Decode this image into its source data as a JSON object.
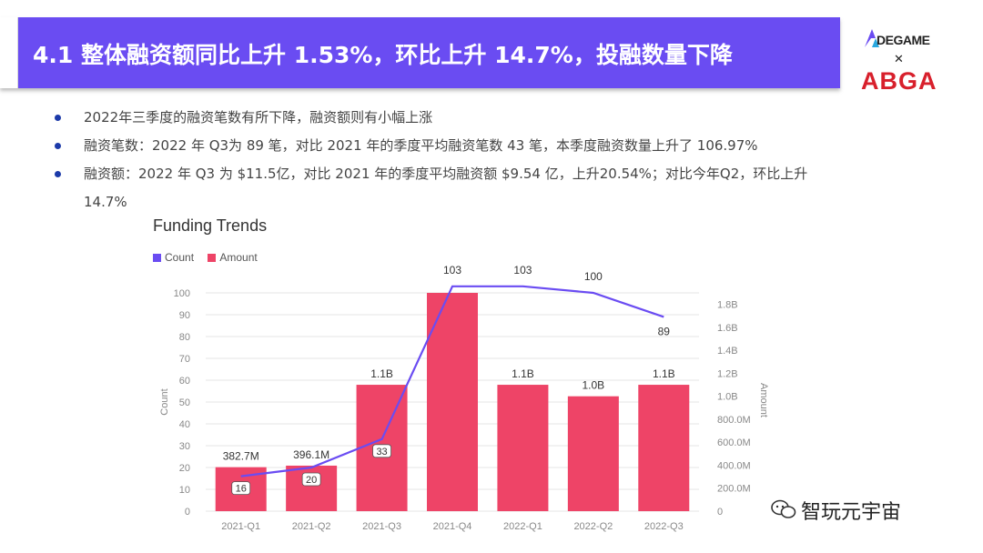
{
  "header": {
    "title": "4.1 整体融资额同比上升 1.53%，环比上升 14.7%，投融数量下降"
  },
  "logos": {
    "degame": "DEGAME",
    "separator": "✕",
    "abga": "ABGA"
  },
  "bullets": [
    {
      "text": "2022年三季度的融资笔数有所下降，融资额则有小幅上涨"
    },
    {
      "text": "融资笔数：2022 年 Q3为 89 笔，对比 2021 年的季度平均融资笔数 43 笔，本季度融资数量上升了 106.97%"
    },
    {
      "text": "融资额：2022 年 Q3 为 $11.5亿，对比 2021 年的季度平均融资额 $9.54 亿，上升20.54%；对比今年Q2，环比上升",
      "text2": "14.7%"
    }
  ],
  "watermark": {
    "text": "智玩元宇宙"
  },
  "colors": {
    "header": "#6a4cf2",
    "count_line": "#6a4cf2",
    "amount_bar": "#ee4467"
  },
  "chart_data": {
    "type": "bar",
    "title": "Funding Trends",
    "legend": [
      {
        "name": "Count",
        "color": "#6a4cf2"
      },
      {
        "name": "Amount",
        "color": "#ee4467"
      }
    ],
    "legend_position": "top-left",
    "categories": [
      "2021-Q1",
      "2021-Q2",
      "2021-Q3",
      "2021-Q4",
      "2022-Q1",
      "2022-Q2",
      "2022-Q3"
    ],
    "series": [
      {
        "name": "Amount",
        "type": "bar",
        "axis": "right",
        "values": [
          382.7,
          396.1,
          1100,
          1900,
          1100,
          1000,
          1100
        ],
        "labels": [
          "382.7M",
          "396.1M",
          "1.1B",
          "",
          "1.1B",
          "1.0B",
          "1.1B"
        ]
      },
      {
        "name": "Count",
        "type": "line",
        "axis": "left",
        "values": [
          16,
          20,
          33,
          103,
          103,
          100,
          89
        ],
        "labels": [
          "16",
          "20",
          "33",
          "103",
          "103",
          "100",
          "89"
        ]
      }
    ],
    "ylabel": "Count",
    "y2label": "Amount",
    "ylim": [
      0,
      100
    ],
    "yticks": [
      "0",
      "10",
      "20",
      "30",
      "40",
      "50",
      "60",
      "70",
      "80",
      "90",
      "100"
    ],
    "y2lim": [
      0,
      1900
    ],
    "y2ticks": [
      "0",
      "200.0M",
      "400.0M",
      "600.0M",
      "800.0M",
      "1.0B",
      "1.2B",
      "1.4B",
      "1.6B",
      "1.8B"
    ],
    "grid": true
  }
}
